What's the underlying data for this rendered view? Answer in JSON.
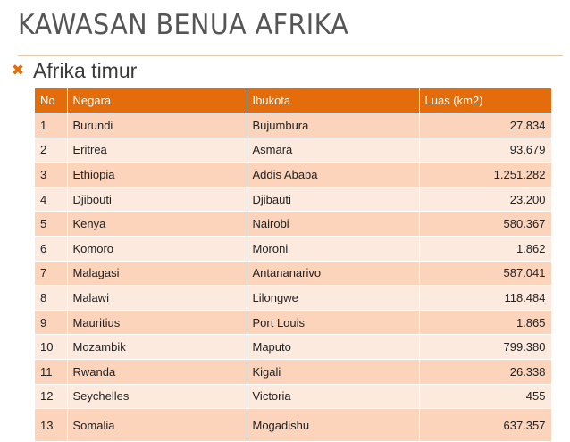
{
  "slide": {
    "title": "KAWASAN BENUA AFRIKA",
    "bullet_icon": "x-bullet-icon",
    "bullet_text": "Afrika timur"
  },
  "table": {
    "headers": [
      "No",
      "Negara",
      "Ibukota",
      "Luas (km2)"
    ],
    "rows": [
      [
        "1",
        "Burundi",
        "Bujumbura",
        "27.834"
      ],
      [
        "2",
        "Eritrea",
        "Asmara",
        "93.679"
      ],
      [
        "3",
        "Ethiopia",
        "Addis Ababa",
        "1.251.282"
      ],
      [
        "4",
        "Djibouti",
        "Djibauti",
        "23.200"
      ],
      [
        "5",
        "Kenya",
        "Nairobi",
        "580.367"
      ],
      [
        "6",
        "Komoro",
        "Moroni",
        "1.862"
      ],
      [
        "7",
        "Malagasi",
        "Antananarivo",
        "587.041"
      ],
      [
        "8",
        "Malawi",
        "Lilongwe",
        "118.484"
      ],
      [
        "9",
        "Mauritius",
        "Port Louis",
        "1.865"
      ],
      [
        "10",
        "Mozambik",
        "Maputo",
        "799.380"
      ],
      [
        "11",
        "Rwanda",
        "Kigali",
        "26.338"
      ],
      [
        "12",
        "Seychelles",
        "Victoria",
        "455"
      ],
      [
        "13",
        "Somalia",
        "Mogadishu",
        "637.357"
      ]
    ]
  },
  "colors": {
    "accent": "#e46c0a",
    "row_dark": "#fbd4bb",
    "row_light": "#fdeadf",
    "title": "#555555"
  }
}
